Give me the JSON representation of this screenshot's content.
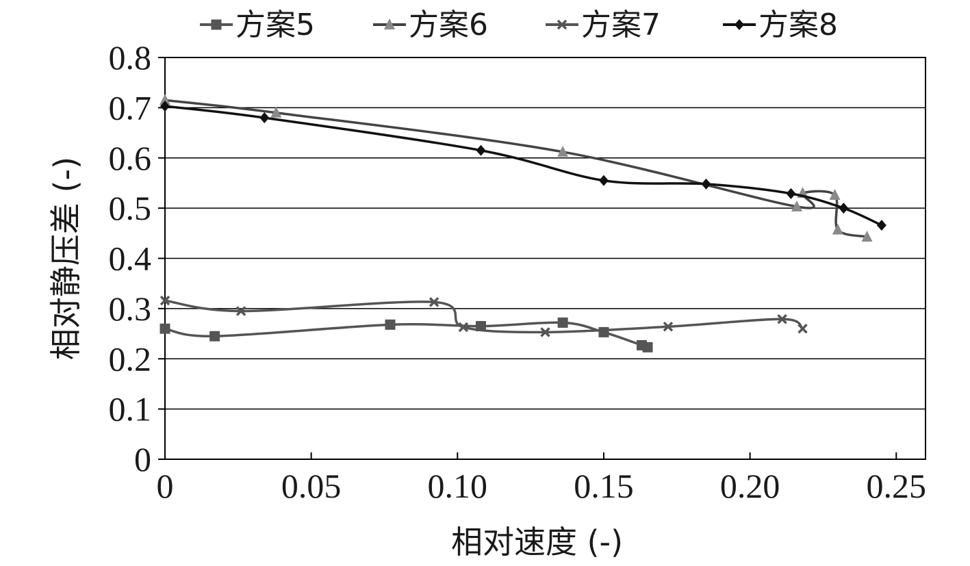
{
  "chart_data": {
    "type": "line",
    "title": "",
    "xlabel": "相对速度 (-)",
    "ylabel": "相对静压差 (-)",
    "xlim": [
      0,
      0.26
    ],
    "ylim": [
      0,
      0.8
    ],
    "xticks": [
      0,
      0.05,
      0.1,
      0.15,
      0.2,
      0.25
    ],
    "xtick_labels": [
      "0",
      "0.05",
      "0.10",
      "0.15",
      "0.20",
      "0.25"
    ],
    "yticks": [
      0,
      0.1,
      0.2,
      0.3,
      0.4,
      0.5,
      0.6,
      0.7,
      0.8
    ],
    "ytick_labels": [
      "0",
      "0.1",
      "0.2",
      "0.3",
      "0.4",
      "0.5",
      "0.6",
      "0.7",
      "0.8"
    ],
    "grid": "horizontal",
    "legend_position": "top",
    "series": [
      {
        "name": "方案5",
        "marker": "square",
        "color": "#555555",
        "x": [
          0,
          0.017,
          0.077,
          0.108,
          0.136,
          0.15,
          0.163,
          0.165
        ],
        "y": [
          0.26,
          0.245,
          0.268,
          0.265,
          0.272,
          0.253,
          0.227,
          0.223
        ]
      },
      {
        "name": "方案6",
        "marker": "triangle",
        "color": "#8a8a8a",
        "line_color": "#444444",
        "x": [
          0,
          0.038,
          0.136,
          0.216,
          0.218,
          0.229,
          0.23,
          0.24
        ],
        "y": [
          0.715,
          0.69,
          0.612,
          0.503,
          0.53,
          0.526,
          0.457,
          0.443
        ]
      },
      {
        "name": "方案7",
        "marker": "x",
        "color": "#555555",
        "x": [
          0,
          0.026,
          0.092,
          0.102,
          0.13,
          0.172,
          0.211,
          0.218
        ],
        "y": [
          0.316,
          0.295,
          0.313,
          0.263,
          0.253,
          0.264,
          0.279,
          0.26
        ]
      },
      {
        "name": "方案8",
        "marker": "diamond",
        "color": "#111111",
        "x": [
          0,
          0.034,
          0.108,
          0.15,
          0.185,
          0.214,
          0.232,
          0.245
        ],
        "y": [
          0.703,
          0.68,
          0.615,
          0.555,
          0.548,
          0.529,
          0.5,
          0.466
        ]
      }
    ]
  }
}
